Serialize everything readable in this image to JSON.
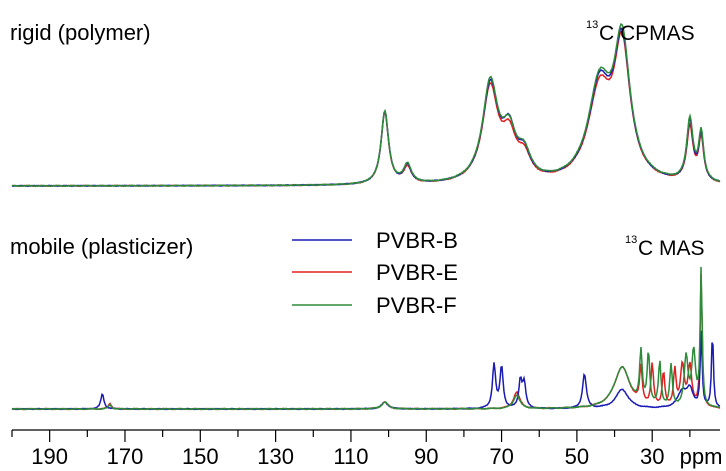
{
  "chart_data": {
    "type": "line",
    "xlabel": "ppm",
    "xlim": [
      200,
      12
    ],
    "x_reversed": true,
    "x_ticks": [
      190,
      170,
      150,
      130,
      110,
      90,
      70,
      50,
      30
    ],
    "grid": false,
    "legend": {
      "placement": "center",
      "entries": [
        {
          "name": "PVBR-B",
          "color": "#1a1ab4"
        },
        {
          "name": "PVBR-E",
          "color": "#e02020"
        },
        {
          "name": "PVBR-F",
          "color": "#2e8b3a"
        }
      ]
    },
    "panels": [
      {
        "label": "rigid (polymer)",
        "title_sup": "13",
        "title_text": "C CPMAS",
        "peaks": [
          {
            "ppm": 101,
            "B": 0.54,
            "E": 0.53,
            "F": 0.54,
            "w": 1.2
          },
          {
            "ppm": 95,
            "B": 0.13,
            "E": 0.12,
            "F": 0.14,
            "w": 1.2
          },
          {
            "ppm": 73,
            "B": 0.71,
            "E": 0.69,
            "F": 0.73,
            "w": 2.5
          },
          {
            "ppm": 68,
            "B": 0.33,
            "E": 0.3,
            "F": 0.32,
            "w": 2.2
          },
          {
            "ppm": 64,
            "B": 0.17,
            "E": 0.16,
            "F": 0.18,
            "w": 2
          },
          {
            "ppm": 44,
            "B": 0.68,
            "E": 0.65,
            "F": 0.7,
            "w": 3.6
          },
          {
            "ppm": 38,
            "B": 0.98,
            "E": 0.96,
            "F": 1.0,
            "w": 2.6
          },
          {
            "ppm": 20,
            "B": 0.44,
            "E": 0.4,
            "F": 0.46,
            "w": 1
          },
          {
            "ppm": 17,
            "B": 0.34,
            "E": 0.32,
            "F": 0.36,
            "w": 0.8
          }
        ]
      },
      {
        "label": "mobile (plasticizer)",
        "title_sup": "13",
        "title_text": "C MAS",
        "peaks_by_series": {
          "B": [
            [
              176,
              0.11,
              0.5
            ],
            [
              101,
              0.05,
              1
            ],
            [
              72,
              0.32,
              0.5
            ],
            [
              70,
              0.3,
              0.5
            ],
            [
              65,
              0.2,
              0.5
            ],
            [
              64,
              0.18,
              0.5
            ],
            [
              48,
              0.25,
              0.6
            ],
            [
              38,
              0.14,
              2
            ],
            [
              22,
              0.12,
              1.5
            ],
            [
              20,
              0.12,
              1
            ],
            [
              17,
              0.55,
              0.3
            ],
            [
              14,
              0.55,
              0.3
            ]
          ],
          "E": [
            [
              174,
              0.04,
              0.5
            ],
            [
              101,
              0.05,
              1
            ],
            [
              66,
              0.12,
              1
            ],
            [
              38,
              0.3,
              2.5
            ],
            [
              33,
              0.26,
              0.4
            ],
            [
              30,
              0.3,
              0.4
            ],
            [
              27,
              0.25,
              0.4
            ],
            [
              24,
              0.27,
              0.4
            ],
            [
              22,
              0.3,
              0.6
            ],
            [
              20,
              0.3,
              0.6
            ],
            [
              17,
              0.98,
              0.3
            ]
          ],
          "F": [
            [
              174,
              0.03,
              0.5
            ],
            [
              101,
              0.05,
              1
            ],
            [
              66,
              0.1,
              1
            ],
            [
              38,
              0.3,
              2.5
            ],
            [
              33,
              0.37,
              0.4
            ],
            [
              31,
              0.38,
              0.4
            ],
            [
              28,
              0.32,
              0.4
            ],
            [
              25,
              0.3,
              0.4
            ],
            [
              21,
              0.36,
              0.6
            ],
            [
              19,
              0.4,
              0.6
            ],
            [
              17,
              1.0,
              0.3
            ]
          ]
        }
      }
    ]
  }
}
